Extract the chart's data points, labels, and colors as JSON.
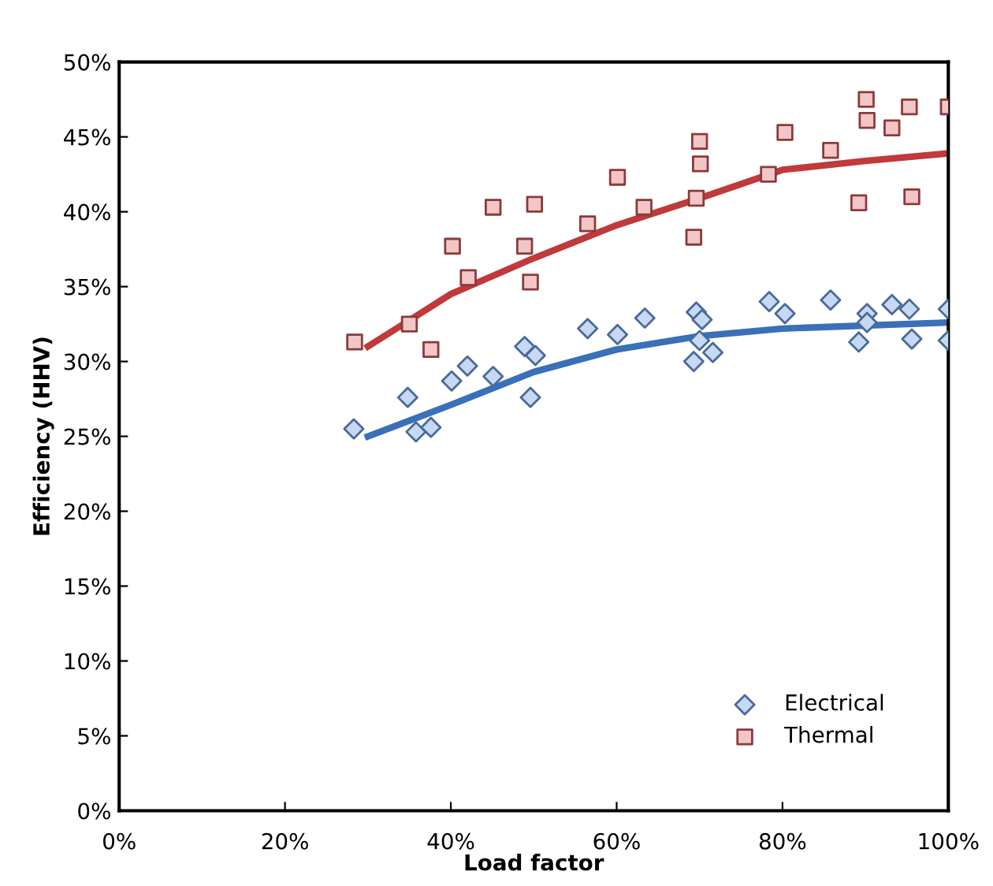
{
  "chart_data": {
    "type": "scatter",
    "xlabel": "Load factor",
    "ylabel": "Efficiency (HHV)",
    "xlim": [
      0,
      100
    ],
    "ylim": [
      0,
      50
    ],
    "xticks": [
      {
        "value": 0,
        "label": "0%"
      },
      {
        "value": 20,
        "label": "20%"
      },
      {
        "value": 40,
        "label": "40%"
      },
      {
        "value": 60,
        "label": "60%"
      },
      {
        "value": 80,
        "label": "80%"
      },
      {
        "value": 100,
        "label": "100%"
      }
    ],
    "yticks": [
      {
        "value": 0,
        "label": "0%"
      },
      {
        "value": 5,
        "label": "5%"
      },
      {
        "value": 10,
        "label": "10%"
      },
      {
        "value": 15,
        "label": "15%"
      },
      {
        "value": 20,
        "label": "20%"
      },
      {
        "value": 25,
        "label": "25%"
      },
      {
        "value": 30,
        "label": "30%"
      },
      {
        "value": 35,
        "label": "35%"
      },
      {
        "value": 40,
        "label": "40%"
      },
      {
        "value": 45,
        "label": "45%"
      },
      {
        "value": 50,
        "label": "50%"
      }
    ],
    "grid": false,
    "legend": "bottom right",
    "series": [
      {
        "name": "Electrical",
        "marker": "diamond",
        "color": "#c6d9f0",
        "x": [
          28.3,
          34.8,
          35.8,
          37.6,
          40.1,
          42.0,
          45.1,
          48.9,
          50.2,
          49.6,
          56.5,
          60.1,
          63.4,
          69.3,
          69.6,
          70.3,
          70.0,
          71.6,
          78.4,
          80.3,
          85.8,
          89.2,
          90.2,
          90.2,
          93.2,
          95.3,
          95.6,
          100,
          100
        ],
        "values": [
          25.5,
          27.6,
          25.3,
          25.6,
          28.7,
          29.7,
          29.0,
          31.0,
          30.4,
          27.6,
          32.2,
          31.8,
          32.9,
          30.0,
          33.3,
          32.8,
          31.4,
          30.6,
          34.0,
          33.2,
          34.1,
          31.3,
          33.2,
          32.6,
          33.8,
          33.5,
          31.5,
          33.5,
          31.4
        ]
      },
      {
        "name": "Thermal",
        "marker": "square",
        "color": "#f2c6c6",
        "x": [
          28.4,
          35.0,
          37.6,
          40.2,
          42.1,
          45.1,
          48.9,
          50.1,
          49.6,
          56.5,
          60.1,
          63.3,
          70.0,
          70.1,
          69.6,
          69.3,
          78.3,
          80.3,
          85.8,
          90.1,
          90.2,
          89.2,
          93.2,
          95.3,
          95.6,
          100
        ],
        "values": [
          31.3,
          32.5,
          30.8,
          37.7,
          35.6,
          40.3,
          37.7,
          40.5,
          35.3,
          39.2,
          42.3,
          40.3,
          44.7,
          43.2,
          40.9,
          38.3,
          42.5,
          45.3,
          44.1,
          47.5,
          46.1,
          40.6,
          45.6,
          47.0,
          41.0,
          47.0
        ]
      },
      {
        "type": "line",
        "color": "#3a70b8",
        "x": [
          30,
          40,
          50,
          60,
          70,
          80,
          90,
          100
        ],
        "values": [
          25.0,
          27.1,
          29.3,
          30.8,
          31.7,
          32.2,
          32.4,
          32.6
        ]
      },
      {
        "type": "line",
        "color": "#c0393b",
        "x": [
          30,
          40,
          50,
          60,
          70,
          80,
          90,
          100
        ],
        "values": [
          31.0,
          34.5,
          36.9,
          39.1,
          40.9,
          42.8,
          43.4,
          43.9
        ]
      }
    ]
  }
}
